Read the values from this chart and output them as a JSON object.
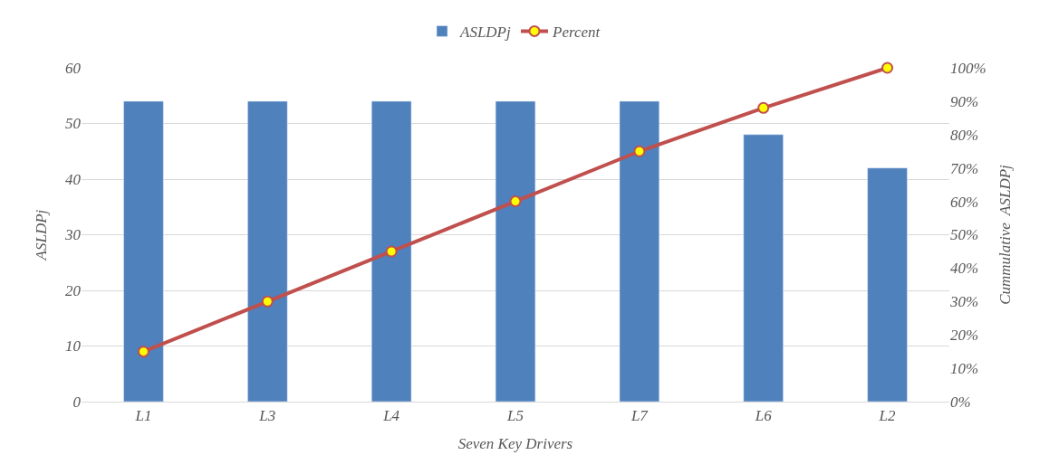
{
  "chart_data": {
    "type": "bar",
    "xlabel": "Seven Key Drivers",
    "ylabel": "ASLDPj",
    "y2label": "Cummulative  ASLDPj",
    "categories": [
      "L1",
      "L3",
      "L4",
      "L5",
      "L7",
      "L6",
      "L2"
    ],
    "series": [
      {
        "name": "ASLDPj",
        "color": "#4f81bd",
        "values": [
          54,
          54,
          54,
          54,
          54,
          48,
          42
        ]
      },
      {
        "name": "Percent",
        "type": "line",
        "axis": "y2",
        "color": "#c0504d",
        "marker": "circle",
        "values": [
          15,
          30,
          45,
          60,
          75,
          88,
          100
        ]
      }
    ],
    "ylim": [
      0,
      60
    ],
    "yticks": [
      0,
      10,
      20,
      30,
      40,
      50,
      60
    ],
    "y2lim": [
      0,
      100
    ],
    "y2ticks": [
      {
        "value": 0,
        "label": "0%"
      },
      {
        "value": 10,
        "label": "10%"
      },
      {
        "value": 20,
        "label": "20%"
      },
      {
        "value": 30,
        "label": "30%"
      },
      {
        "value": 40,
        "label": "40%"
      },
      {
        "value": 50,
        "label": "50%"
      },
      {
        "value": 60,
        "label": "60%"
      },
      {
        "value": 70,
        "label": "70%"
      },
      {
        "value": 80,
        "label": "80%"
      },
      {
        "value": 90,
        "label": "90%"
      },
      {
        "value": 100,
        "label": "100%"
      }
    ],
    "grid": "y",
    "legend": "top"
  }
}
